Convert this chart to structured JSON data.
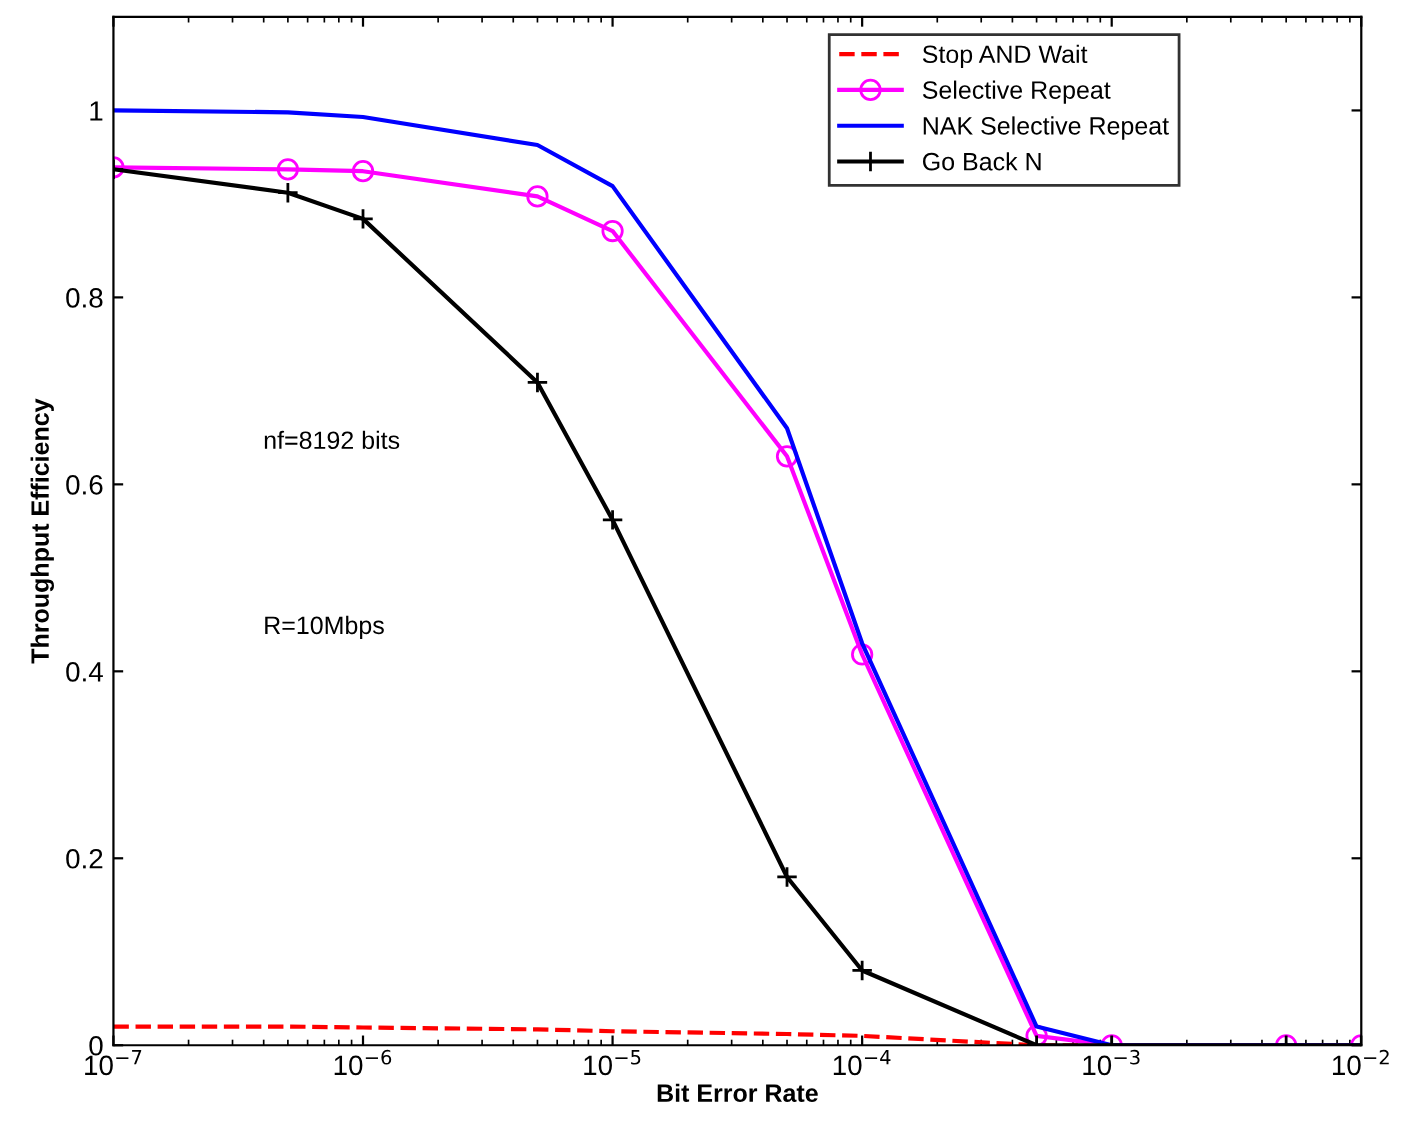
{
  "chart_data": {
    "type": "line",
    "xlabel": "Bit Error Rate",
    "ylabel": "Throughput Efficiency",
    "x": [
      1e-07,
      5e-07,
      1e-06,
      5e-06,
      1e-05,
      5e-05,
      0.0001,
      0.0005,
      0.001,
      0.005,
      0.01
    ],
    "series": [
      {
        "name": "Stop AND Wait",
        "color": "#ff0000",
        "line_style": "dashed",
        "marker": "none",
        "values": [
          0.02,
          0.02,
          0.019,
          0.017,
          0.015,
          0.012,
          0.01,
          0,
          0,
          null,
          null
        ]
      },
      {
        "name": "Selective Repeat",
        "color": "#ff00ff",
        "line_style": "solid",
        "marker": "circle",
        "values": [
          0.939,
          0.937,
          0.935,
          0.908,
          0.871,
          0.63,
          0.418,
          0.01,
          0,
          0,
          0
        ]
      },
      {
        "name": "NAK Selective Repeat",
        "color": "#0000ff",
        "line_style": "solid",
        "marker": "none",
        "values": [
          1.0,
          0.998,
          0.993,
          0.963,
          0.919,
          0.66,
          0.43,
          0.02,
          0,
          0,
          0
        ]
      },
      {
        "name": "Go Back N",
        "color": "#000000",
        "line_style": "solid",
        "marker": "cross",
        "values": [
          0.937,
          0.912,
          0.884,
          0.709,
          0.562,
          0.18,
          0.08,
          0,
          0,
          0,
          0
        ]
      }
    ],
    "log": "x",
    "xlim": [
      1e-07,
      0.01
    ],
    "xticks": [
      {
        "value": 1e-07,
        "label": "10$^{−7}$"
      },
      {
        "value": 1e-06,
        "label": "10$^{−6}$"
      },
      {
        "value": 1e-05,
        "label": "10$^{−5}$"
      },
      {
        "value": 0.0001,
        "label": "10$^{−4}$"
      },
      {
        "value": 0.001,
        "label": "10$^{−3}$"
      },
      {
        "value": 0.01,
        "label": "10$^{−2}$"
      }
    ],
    "ylim": [
      0,
      1.1
    ],
    "yticks": [
      0,
      0.2,
      0.4,
      0.6,
      0.8,
      1
    ],
    "legend": "top right",
    "grid": false,
    "annotations": [
      "nf=8192 bits",
      "R=10Mbps"
    ]
  }
}
